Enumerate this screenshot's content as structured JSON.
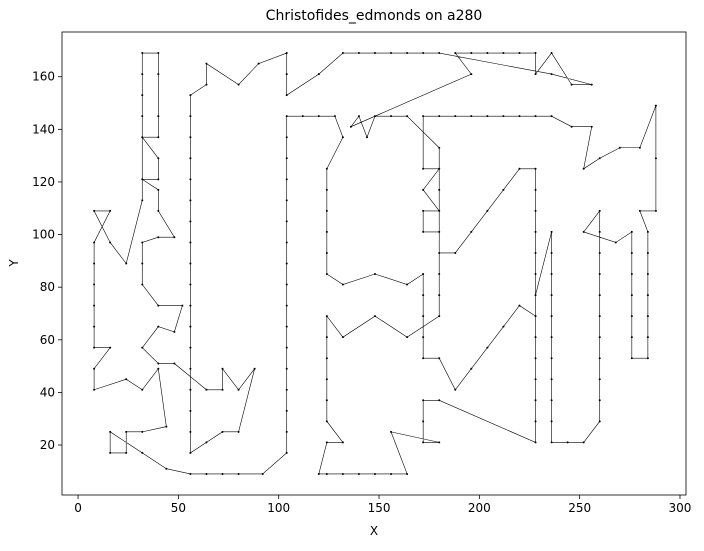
{
  "chart_data": {
    "type": "line",
    "title": "Christofides_edmonds on a280",
    "x_label": "X",
    "y_label": "Y",
    "xlim": [
      -8,
      303
    ],
    "ylim": [
      1,
      177
    ],
    "xticks": [
      0,
      50,
      100,
      150,
      200,
      250,
      300
    ],
    "yticks": [
      20,
      40,
      60,
      80,
      100,
      120,
      140,
      160
    ],
    "series": [
      {
        "color": "#000000",
        "x": [
          8,
          16,
          8,
          8,
          8,
          8,
          8,
          8,
          16,
          8,
          8,
          24,
          32,
          40,
          44,
          32,
          24,
          24,
          16,
          16,
          32,
          44,
          56,
          64,
          72,
          80,
          92,
          104,
          104,
          104,
          104,
          104,
          104,
          104,
          104,
          104,
          104,
          104,
          104,
          104,
          104,
          104,
          104,
          104,
          112,
          120,
          128,
          132,
          124,
          124,
          124,
          124,
          124,
          124,
          132,
          148,
          164,
          172,
          172,
          172,
          172,
          172,
          180,
          188,
          196,
          204,
          212,
          220,
          228,
          228,
          236,
          236,
          236,
          236,
          236,
          236,
          236,
          236,
          236,
          236,
          236,
          244,
          252,
          260,
          260,
          260,
          260,
          260,
          260,
          260,
          260,
          260,
          260,
          260,
          252,
          268,
          276,
          276,
          276,
          276,
          276,
          276,
          276,
          284,
          284,
          284,
          284,
          284,
          284,
          284,
          280,
          288,
          288,
          288,
          280,
          270,
          260,
          252,
          256,
          246,
          236,
          228,
          220,
          212,
          204,
          196,
          188,
          180,
          172,
          172,
          180,
          172,
          180,
          172,
          172,
          180,
          180,
          188,
          196,
          204,
          212,
          220,
          228,
          228,
          228,
          228,
          228,
          228,
          228,
          228,
          228,
          228,
          228,
          228,
          180,
          172,
          172,
          172,
          180,
          156,
          164,
          156,
          148,
          140,
          132,
          124,
          120,
          124,
          132,
          124,
          124,
          124,
          124,
          124,
          124,
          132,
          148,
          164,
          180,
          180,
          180,
          180,
          180,
          164,
          156,
          148,
          144,
          140,
          136,
          196,
          188,
          196,
          204,
          212,
          220,
          228,
          228,
          236,
          246,
          256,
          236,
          180,
          172,
          164,
          156,
          148,
          140,
          132,
          120,
          104,
          104,
          104,
          90,
          80,
          64,
          64,
          56,
          56,
          56,
          56,
          56,
          56,
          56,
          56,
          56,
          56,
          56,
          56,
          56,
          56,
          56,
          56,
          56,
          56,
          64,
          72,
          80,
          88,
          80,
          72,
          72,
          64,
          48,
          40,
          32,
          40,
          48,
          52,
          40,
          32,
          32,
          32,
          40,
          48,
          40,
          40,
          32,
          40,
          40,
          32,
          40,
          40,
          40,
          40,
          32,
          32,
          32,
          32,
          32,
          24,
          16
        ],
        "values": [
          109,
          109,
          97,
          89,
          81,
          73,
          65,
          57,
          57,
          49,
          41,
          45,
          41,
          49,
          27,
          25,
          25,
          17,
          17,
          25,
          17,
          11,
          9,
          9,
          9,
          9,
          9,
          17,
          25,
          33,
          41,
          49,
          57,
          65,
          73,
          81,
          89,
          97,
          105,
          113,
          121,
          129,
          137,
          145,
          145,
          145,
          145,
          137,
          125,
          117,
          109,
          101,
          93,
          85,
          81,
          85,
          81,
          85,
          77,
          69,
          61,
          53,
          53,
          41,
          49,
          57,
          65,
          73,
          69,
          77,
          101,
          93,
          85,
          77,
          69,
          61,
          53,
          45,
          37,
          29,
          21,
          21,
          21,
          29,
          37,
          45,
          53,
          61,
          69,
          77,
          85,
          93,
          101,
          109,
          101,
          97,
          101,
          93,
          85,
          77,
          69,
          61,
          53,
          53,
          61,
          69,
          77,
          85,
          93,
          101,
          109,
          109,
          129,
          149,
          133,
          133,
          129,
          125,
          141,
          141,
          145,
          145,
          145,
          145,
          145,
          145,
          145,
          145,
          145,
          125,
          125,
          117,
          109,
          109,
          101,
          101,
          93,
          93,
          101,
          109,
          117,
          125,
          125,
          117,
          109,
          101,
          93,
          85,
          61,
          53,
          45,
          37,
          29,
          21,
          37,
          37,
          29,
          21,
          21,
          25,
          9,
          9,
          9,
          9,
          9,
          9,
          9,
          21,
          21,
          29,
          37,
          45,
          53,
          61,
          69,
          61,
          69,
          61,
          69,
          77,
          85,
          117,
          133,
          145,
          145,
          145,
          137,
          145,
          141,
          161,
          169,
          169,
          169,
          169,
          169,
          169,
          161,
          169,
          157,
          157,
          161,
          169,
          169,
          169,
          169,
          169,
          169,
          169,
          161,
          153,
          161,
          169,
          165,
          157,
          165,
          157,
          153,
          145,
          137,
          129,
          121,
          113,
          105,
          97,
          89,
          81,
          73,
          65,
          57,
          49,
          41,
          33,
          25,
          17,
          21,
          25,
          25,
          49,
          41,
          49,
          41,
          41,
          51,
          51,
          57,
          65,
          63,
          73,
          73,
          81,
          89,
          97,
          99,
          99,
          109,
          117,
          121,
          121,
          129,
          137,
          137,
          145,
          161,
          169,
          169,
          161,
          153,
          145,
          113,
          89,
          97
        ]
      }
    ]
  }
}
